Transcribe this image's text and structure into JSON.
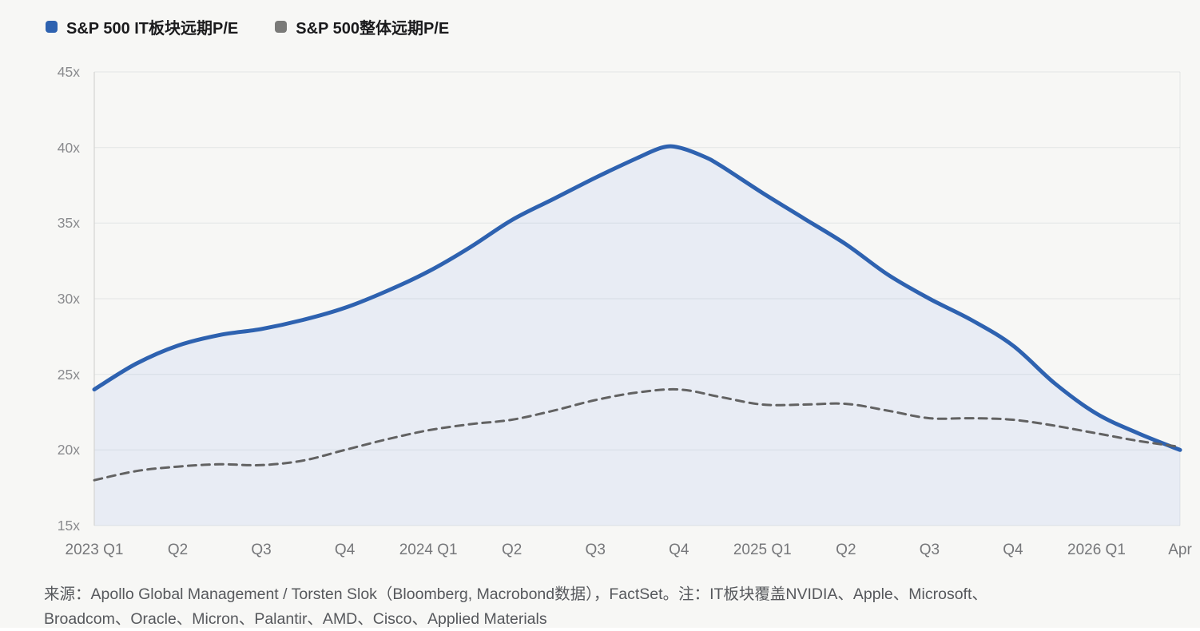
{
  "legend": {
    "items": [
      {
        "id": "it-sector",
        "label": "S&P 500 IT板块远期P/E",
        "color": "#2e62b0"
      },
      {
        "id": "overall",
        "label": "S&P 500整体远期P/E",
        "color": "#7a7a78"
      }
    ]
  },
  "chart_data": {
    "type": "area",
    "title": "",
    "xlabel": "",
    "ylabel": "",
    "ylim": [
      15,
      45
    ],
    "grid": true,
    "legend_position": "top-left",
    "x_ticks": [
      "2023 Q1",
      "Q2",
      "Q3",
      "Q4",
      "2024 Q1",
      "Q2",
      "Q3",
      "Q4",
      "2025 Q1",
      "Q2",
      "Q3",
      "Q4",
      "2026 Q1",
      "Apr"
    ],
    "y_ticks": [
      "45x",
      "40x",
      "35x",
      "30x",
      "25x",
      "20x",
      "15x"
    ],
    "y_tick_values": [
      45,
      40,
      35,
      30,
      25,
      20,
      15
    ],
    "x_unit_note": "x is in quarter-index units: 0 = 2023 Q1, 13 = Apr 2026; integer indices fall on the axis ticks",
    "series": [
      {
        "name": "S&P 500 IT板块远期P/E",
        "style": "solid",
        "filled": true,
        "color": "#2e62b0",
        "fill_color": "#e8ecf4",
        "x": [
          0,
          0.5,
          1,
          1.5,
          2,
          2.5,
          3,
          3.5,
          4,
          4.5,
          5,
          5.5,
          6,
          6.5,
          6.8,
          7,
          7.3,
          7.5,
          8,
          8.5,
          9,
          9.5,
          10,
          10.5,
          11,
          11.5,
          12,
          12.5,
          13
        ],
        "values": [
          24.0,
          25.7,
          26.9,
          27.6,
          28.0,
          28.6,
          29.4,
          30.5,
          31.8,
          33.4,
          35.2,
          36.6,
          38.0,
          39.3,
          40.0,
          40.0,
          39.4,
          38.8,
          37.0,
          35.3,
          33.6,
          31.6,
          30.0,
          28.6,
          26.9,
          24.4,
          22.4,
          21.1,
          20.0
        ]
      },
      {
        "name": "S&P 500整体远期P/E",
        "style": "dashed",
        "filled": false,
        "color": "#626262",
        "x": [
          0,
          0.5,
          1,
          1.5,
          2,
          2.5,
          3,
          3.5,
          4,
          4.5,
          5,
          5.5,
          6,
          6.5,
          7,
          7.5,
          8,
          8.5,
          9,
          9.5,
          10,
          10.5,
          11,
          11.5,
          12,
          12.5,
          13
        ],
        "values": [
          18.0,
          18.6,
          18.9,
          19.05,
          19.0,
          19.3,
          20.0,
          20.7,
          21.3,
          21.7,
          22.0,
          22.6,
          23.3,
          23.8,
          24.0,
          23.5,
          23.0,
          23.0,
          23.05,
          22.6,
          22.1,
          22.1,
          22.0,
          21.6,
          21.1,
          20.6,
          20.2
        ]
      }
    ]
  },
  "source_note": {
    "line1": "来源：Apollo Global Management / Torsten Slok（Bloomberg, Macrobond数据），FactSet。注：IT板块覆盖NVIDIA、Apple、Microsoft、",
    "line2": "Broadcom、Oracle、Micron、Palantir、AMD、Cisco、Applied Materials"
  }
}
